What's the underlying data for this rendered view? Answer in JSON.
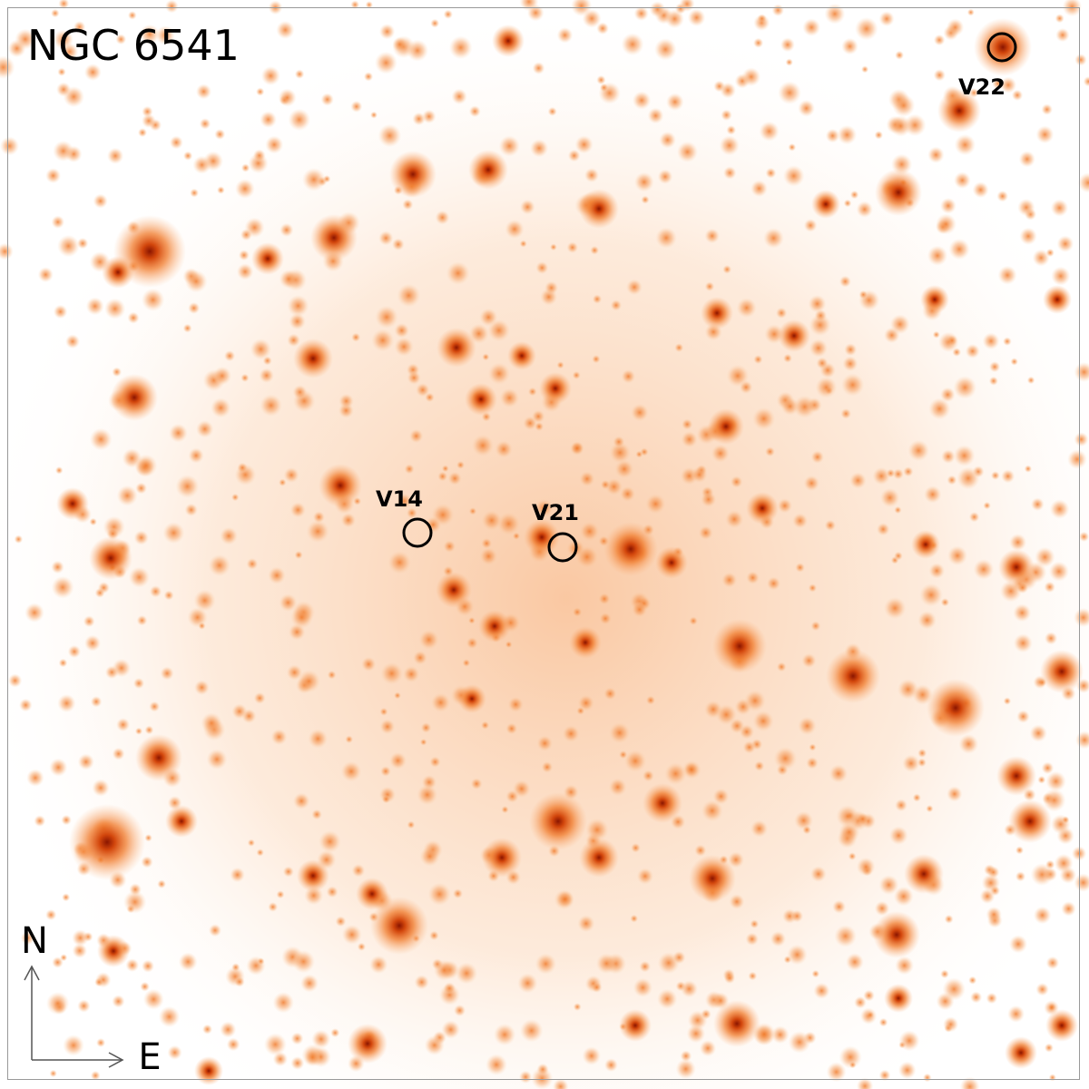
{
  "title": "NGC 6541",
  "variables": [
    {
      "label": "V14"
    },
    {
      "label": "V21"
    },
    {
      "label": "V22"
    }
  ],
  "compass": {
    "north": "N",
    "east": "E"
  }
}
